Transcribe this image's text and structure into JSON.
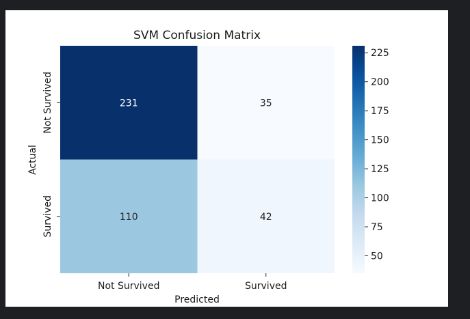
{
  "chart_data": {
    "type": "heatmap",
    "title": "SVM Confusion Matrix",
    "xlabel": "Predicted",
    "ylabel": "Actual",
    "x_categories": [
      "Not Survived",
      "Survived"
    ],
    "y_categories": [
      "Not Survived",
      "Survived"
    ],
    "values": [
      [
        231,
        35
      ],
      [
        110,
        42
      ]
    ],
    "annotations": true,
    "colormap": "Blues",
    "vmin": 35,
    "vmax": 231,
    "colorbar": {
      "ticks": [
        50,
        75,
        100,
        125,
        150,
        175,
        200,
        225
      ],
      "tick_labels": [
        "50",
        "75",
        "100",
        "125",
        "150",
        "175",
        "200",
        "225"
      ]
    }
  }
}
